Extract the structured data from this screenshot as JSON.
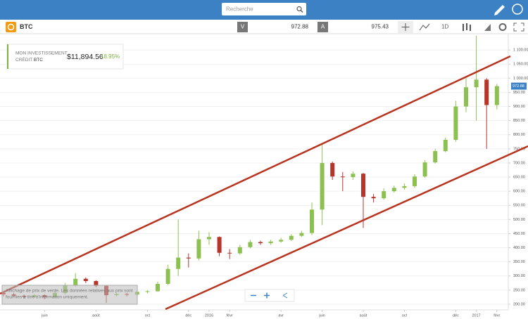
{
  "header": {
    "search_placeholder": "Recherche"
  },
  "instrument": {
    "name": "BTC",
    "sell_label": "V",
    "sell_price": "972.88",
    "buy_label": "A",
    "buy_price": "975.43",
    "timeframe": "1D"
  },
  "investment": {
    "label_1": "MON INVESTISSEMENT",
    "label_2": "CRÉDIT",
    "label_3": "BTC",
    "amount": "$11,894.56",
    "change": "18.95%"
  },
  "disclaimer": [
    "Affichage de prix de vente. Les données relatives aux prix sont",
    "fournies à titre d'information uniquement."
  ],
  "chart_data": {
    "type": "candlestick",
    "categories": [
      null,
      null,
      null,
      null,
      "juin",
      null,
      null,
      null,
      null,
      "août",
      null,
      null,
      null,
      null,
      "oct",
      null,
      null,
      null,
      "déc",
      null,
      "2016",
      null,
      "févr",
      null,
      null,
      null,
      null,
      "avr",
      null,
      null,
      null,
      "juin",
      null,
      null,
      null,
      "août",
      null,
      null,
      null,
      "oct",
      null,
      null,
      null,
      null,
      "déc",
      null,
      "2017",
      null,
      "févr"
    ],
    "open": [
      240,
      235,
      230,
      226,
      232,
      225,
      240,
      268,
      290,
      282,
      265,
      232,
      236,
      234,
      244,
      246,
      272,
      325,
      365,
      362,
      430,
      438,
      382,
      380,
      402,
      420,
      416,
      422,
      428,
      442,
      452,
      535,
      700,
      652,
      650,
      662,
      580,
      575,
      600,
      612,
      618,
      652,
      702,
      742,
      782,
      900,
      968,
      995,
      905
    ],
    "high": [
      245,
      240,
      234,
      236,
      235,
      245,
      275,
      310,
      295,
      285,
      268,
      240,
      240,
      248,
      250,
      280,
      340,
      500,
      380,
      460,
      455,
      440,
      395,
      410,
      428,
      425,
      428,
      435,
      448,
      460,
      560,
      770,
      705,
      668,
      670,
      665,
      590,
      610,
      620,
      628,
      660,
      710,
      750,
      790,
      920,
      1000,
      1150,
      1000,
      980
    ],
    "low": [
      228,
      225,
      220,
      222,
      218,
      222,
      235,
      262,
      275,
      260,
      205,
      228,
      228,
      230,
      238,
      244,
      268,
      300,
      330,
      355,
      410,
      370,
      360,
      375,
      398,
      410,
      410,
      418,
      424,
      438,
      445,
      480,
      640,
      600,
      640,
      470,
      560,
      570,
      595,
      605,
      612,
      648,
      698,
      738,
      775,
      880,
      850,
      750,
      890
    ],
    "close": [
      235,
      230,
      226,
      232,
      225,
      240,
      268,
      290,
      282,
      265,
      232,
      236,
      234,
      244,
      246,
      272,
      325,
      365,
      362,
      430,
      438,
      382,
      380,
      402,
      420,
      416,
      422,
      428,
      442,
      452,
      535,
      700,
      652,
      650,
      662,
      580,
      575,
      600,
      612,
      618,
      652,
      702,
      742,
      782,
      900,
      968,
      995,
      905,
      972
    ],
    "up_color": "#8cc152",
    "down_color": "#b8342a",
    "ylim": [
      180,
      1160
    ],
    "yticks": [
      {
        "value": 200,
        "label": "200.00"
      },
      {
        "value": 250,
        "label": "250.00"
      },
      {
        "value": 300,
        "label": "300.00"
      },
      {
        "value": 350,
        "label": "350.00"
      },
      {
        "value": 400,
        "label": "400.00"
      },
      {
        "value": 450,
        "label": "450.00"
      },
      {
        "value": 500,
        "label": "500.00"
      },
      {
        "value": 550,
        "label": "550.00"
      },
      {
        "value": 600,
        "label": "600.00"
      },
      {
        "value": 650,
        "label": "650.00"
      },
      {
        "value": 700,
        "label": "700.00"
      },
      {
        "value": 750,
        "label": "750.00"
      },
      {
        "value": 800,
        "label": "800.00"
      },
      {
        "value": 850,
        "label": "850.00"
      },
      {
        "value": 900,
        "label": "900.00"
      },
      {
        "value": 950,
        "label": "950.00"
      },
      {
        "value": 1000,
        "label": "1 000.00"
      },
      {
        "value": 1050,
        "label": "1 050.00"
      },
      {
        "value": 1100,
        "label": "1 100.00"
      }
    ],
    "grid": true
  }
}
